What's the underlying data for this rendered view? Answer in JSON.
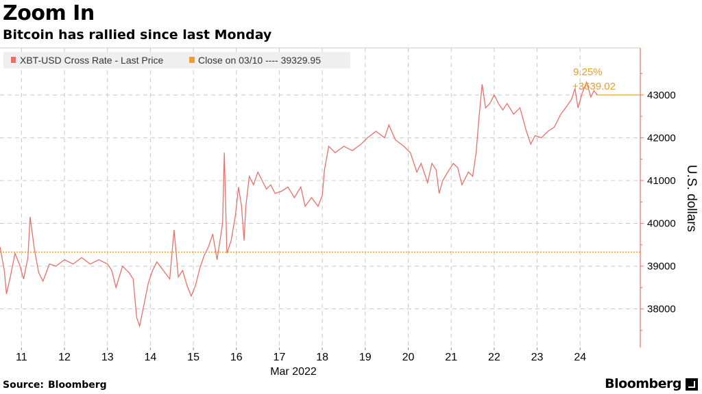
{
  "title": "Zoom In",
  "subtitle": "Bitcoin has rallied since last Monday",
  "source_label": "Source:",
  "source_value": "Bloomberg",
  "brand": "Bloomberg",
  "colors": {
    "price": "#e8706a",
    "reference": "#f0a024",
    "annotation": "#e0a030",
    "grid": "#c8c8c8",
    "axis": "#e8706a"
  },
  "chart_data": {
    "type": "line",
    "xlabel": "Mar 2022",
    "ylabel": "U.S. dollars",
    "x_ticks": [
      "11",
      "12",
      "13",
      "14",
      "15",
      "16",
      "17",
      "18",
      "19",
      "20",
      "21",
      "22",
      "23",
      "24"
    ],
    "y_ticks": [
      38000,
      39000,
      40000,
      41000,
      42000,
      43000
    ],
    "ylim": [
      37100,
      44100
    ],
    "xlim": [
      10.5,
      25.4
    ],
    "grid": true,
    "legend_position": "top-left",
    "series": [
      {
        "name": "XBT-USD Cross Rate - Last Price",
        "points": [
          [
            10.5,
            39450
          ],
          [
            10.6,
            38900
          ],
          [
            10.65,
            38350
          ],
          [
            10.75,
            38800
          ],
          [
            10.85,
            39300
          ],
          [
            10.95,
            39050
          ],
          [
            11.05,
            38700
          ],
          [
            11.15,
            39200
          ],
          [
            11.2,
            40150
          ],
          [
            11.3,
            39400
          ],
          [
            11.4,
            38850
          ],
          [
            11.5,
            38650
          ],
          [
            11.65,
            39050
          ],
          [
            11.8,
            39000
          ],
          [
            12.0,
            39150
          ],
          [
            12.2,
            39050
          ],
          [
            12.4,
            39200
          ],
          [
            12.6,
            39050
          ],
          [
            12.8,
            39150
          ],
          [
            13.0,
            39050
          ],
          [
            13.1,
            38900
          ],
          [
            13.2,
            38500
          ],
          [
            13.35,
            39000
          ],
          [
            13.5,
            38850
          ],
          [
            13.6,
            38700
          ],
          [
            13.68,
            37800
          ],
          [
            13.75,
            37600
          ],
          [
            13.85,
            38100
          ],
          [
            13.95,
            38600
          ],
          [
            14.05,
            38900
          ],
          [
            14.15,
            39100
          ],
          [
            14.3,
            38900
          ],
          [
            14.45,
            38700
          ],
          [
            14.55,
            39850
          ],
          [
            14.65,
            38750
          ],
          [
            14.75,
            38900
          ],
          [
            14.85,
            38550
          ],
          [
            14.95,
            38300
          ],
          [
            15.05,
            38550
          ],
          [
            15.15,
            38950
          ],
          [
            15.25,
            39250
          ],
          [
            15.35,
            39450
          ],
          [
            15.45,
            39750
          ],
          [
            15.55,
            39150
          ],
          [
            15.62,
            39600
          ],
          [
            15.68,
            40000
          ],
          [
            15.72,
            41650
          ],
          [
            15.78,
            39300
          ],
          [
            15.88,
            39600
          ],
          [
            15.98,
            40200
          ],
          [
            16.05,
            40850
          ],
          [
            16.12,
            40400
          ],
          [
            16.18,
            39600
          ],
          [
            16.22,
            40400
          ],
          [
            16.3,
            41100
          ],
          [
            16.4,
            40900
          ],
          [
            16.5,
            41200
          ],
          [
            16.6,
            41000
          ],
          [
            16.7,
            40800
          ],
          [
            16.8,
            40900
          ],
          [
            16.9,
            40700
          ],
          [
            17.05,
            40750
          ],
          [
            17.2,
            40850
          ],
          [
            17.35,
            40600
          ],
          [
            17.5,
            40850
          ],
          [
            17.6,
            40400
          ],
          [
            17.75,
            40600
          ],
          [
            17.9,
            40400
          ],
          [
            18.0,
            40650
          ],
          [
            18.05,
            41250
          ],
          [
            18.15,
            41800
          ],
          [
            18.3,
            41650
          ],
          [
            18.5,
            41800
          ],
          [
            18.7,
            41700
          ],
          [
            18.9,
            41850
          ],
          [
            19.05,
            42000
          ],
          [
            19.25,
            42150
          ],
          [
            19.45,
            42000
          ],
          [
            19.55,
            42300
          ],
          [
            19.7,
            41950
          ],
          [
            19.9,
            41800
          ],
          [
            20.05,
            41650
          ],
          [
            20.2,
            41200
          ],
          [
            20.3,
            41400
          ],
          [
            20.45,
            40950
          ],
          [
            20.55,
            41400
          ],
          [
            20.65,
            41250
          ],
          [
            20.72,
            40700
          ],
          [
            20.8,
            41000
          ],
          [
            20.95,
            41250
          ],
          [
            21.05,
            41400
          ],
          [
            21.15,
            41300
          ],
          [
            21.25,
            40900
          ],
          [
            21.4,
            41200
          ],
          [
            21.5,
            41100
          ],
          [
            21.58,
            41650
          ],
          [
            21.65,
            42500
          ],
          [
            21.72,
            43250
          ],
          [
            21.8,
            42700
          ],
          [
            21.9,
            42800
          ],
          [
            22.0,
            43000
          ],
          [
            22.1,
            42800
          ],
          [
            22.2,
            42650
          ],
          [
            22.3,
            42800
          ],
          [
            22.45,
            42550
          ],
          [
            22.6,
            42700
          ],
          [
            22.75,
            42150
          ],
          [
            22.85,
            41850
          ],
          [
            22.95,
            42050
          ],
          [
            23.1,
            42000
          ],
          [
            23.25,
            42150
          ],
          [
            23.4,
            42250
          ],
          [
            23.55,
            42550
          ],
          [
            23.7,
            42750
          ],
          [
            23.8,
            42900
          ],
          [
            23.88,
            43150
          ],
          [
            23.95,
            42700
          ],
          [
            24.05,
            43050
          ],
          [
            24.15,
            43300
          ],
          [
            24.25,
            42950
          ],
          [
            24.32,
            43100
          ],
          [
            24.4,
            43000
          ]
        ]
      },
      {
        "name": "Close on 03/10 ---- 39329.95",
        "reference_value": 39329.95
      }
    ],
    "annotations": [
      {
        "text": "9.25%"
      },
      {
        "text": "+3639.02"
      }
    ]
  }
}
